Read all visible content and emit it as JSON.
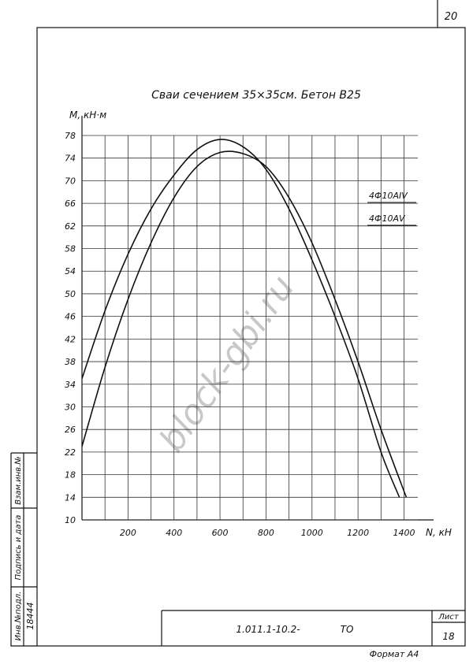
{
  "sheet": {
    "page_number": "20",
    "doc_code": "1.011.1-10.2-",
    "doc_type": "ТО",
    "sheet_label": "Лист",
    "sheet_number": "18",
    "format": "Формат А4",
    "stamp": [
      "Инв.№подл.",
      "Подпись и дата",
      "Взам.инв.№"
    ],
    "inv_number": "18444",
    "watermark": "block-gbi.ru"
  },
  "chart_data": {
    "type": "line",
    "title": "Сваи сечением 35×35см. Бетон В25",
    "y_label": "М, кН·м",
    "x_label": "N, кН",
    "xlim": [
      0,
      1460
    ],
    "xticks": [
      200,
      400,
      600,
      800,
      1000,
      1200,
      1400
    ],
    "ylim": [
      10,
      78
    ],
    "yticks": [
      10,
      14,
      18,
      22,
      26,
      30,
      34,
      38,
      42,
      46,
      50,
      54,
      58,
      62,
      66,
      70,
      74,
      78
    ],
    "grid": true,
    "series": [
      {
        "name": "4Ф10АIV",
        "color": "#111111",
        "x": [
          0,
          100,
          200,
          300,
          400,
          500,
          600,
          700,
          800,
          900,
          1000,
          1100,
          1200,
          1300,
          1380
        ],
        "values": [
          35,
          47,
          57,
          65,
          71,
          75.5,
          77.3,
          76,
          72,
          65,
          56,
          46,
          35,
          22,
          14
        ]
      },
      {
        "name": "4Ф10АV",
        "color": "#111111",
        "x": [
          0,
          100,
          200,
          300,
          400,
          500,
          600,
          700,
          800,
          900,
          1000,
          1100,
          1200,
          1300,
          1410
        ],
        "values": [
          23,
          37,
          49,
          59,
          67,
          72.5,
          75,
          74.8,
          72.5,
          67,
          59,
          49,
          38,
          26,
          14
        ]
      }
    ]
  }
}
